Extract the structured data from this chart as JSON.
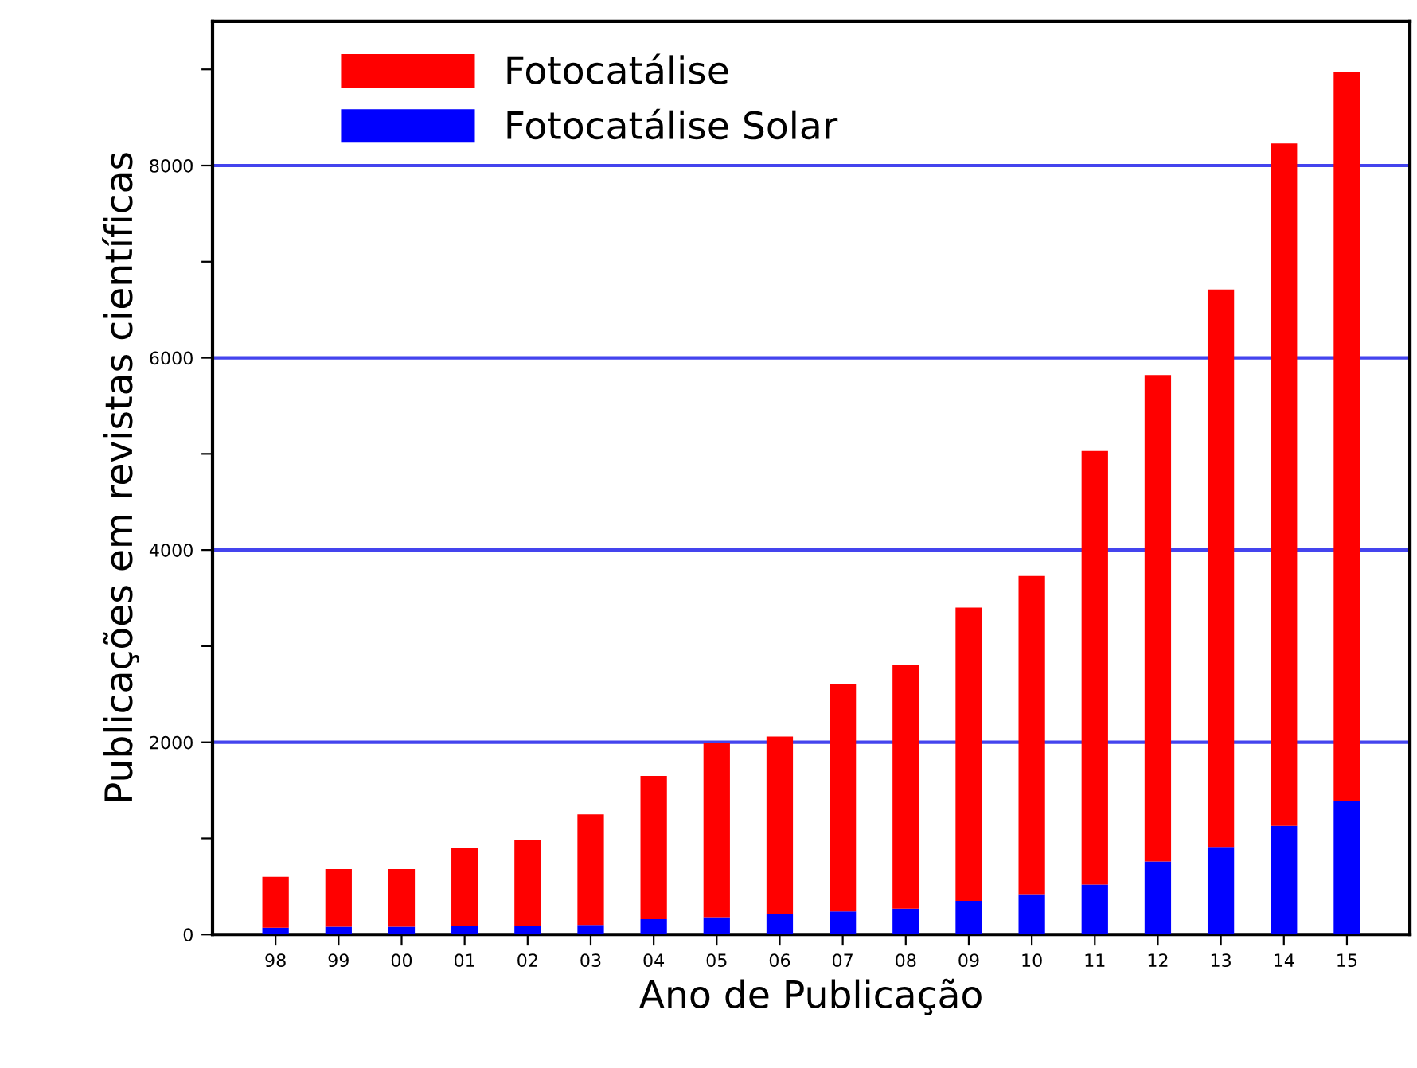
{
  "chart_data": {
    "type": "bar",
    "stacked": true,
    "xlabel": "Ano de Publicação",
    "ylabel": "Publicações em revistas científicas",
    "categories": [
      "98",
      "99",
      "00",
      "01",
      "02",
      "03",
      "04",
      "05",
      "06",
      "07",
      "08",
      "09",
      "10",
      "11",
      "12",
      "13",
      "14",
      "15"
    ],
    "series": [
      {
        "name": "Fotocatálise Solar",
        "color": "#0000ff",
        "values": [
          70,
          80,
          80,
          90,
          90,
          100,
          160,
          180,
          210,
          240,
          270,
          350,
          420,
          520,
          760,
          910,
          1130,
          1390
        ]
      },
      {
        "name": "Fotocatálise",
        "color": "#ff0000",
        "values": [
          530,
          600,
          600,
          810,
          890,
          1150,
          1490,
          1810,
          1850,
          2370,
          2530,
          3050,
          3310,
          4510,
          5060,
          5800,
          7100,
          7580
        ]
      }
    ],
    "ylim": [
      0,
      9500
    ],
    "yticks": [
      0,
      {
        "value": 1000,
        "label": null
      },
      2000,
      {
        "value": 3000,
        "label": null
      },
      4000,
      {
        "value": 5000,
        "label": null
      },
      6000,
      {
        "value": 7000,
        "label": null
      },
      8000,
      {
        "value": 9000,
        "label": null
      }
    ],
    "ref_lines": [
      {
        "axis": "y",
        "value": 2000,
        "color": "#4444ee"
      },
      {
        "axis": "y",
        "value": 4000,
        "color": "#4444ee"
      },
      {
        "axis": "y",
        "value": 6000,
        "color": "#4444ee"
      },
      {
        "axis": "y",
        "value": 8000,
        "color": "#4444ee"
      }
    ],
    "legend": "top left"
  }
}
